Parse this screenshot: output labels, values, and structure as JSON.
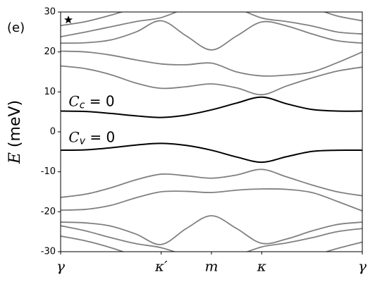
{
  "chart_data": {
    "type": "line",
    "panel_label": "(e)",
    "ylabel": {
      "symbol": "E",
      "unit": "(meV)"
    },
    "annotations": [
      {
        "symbol": "C",
        "sub": "c",
        "rest": " = 0",
        "x": 0.08,
        "y": 7.5
      },
      {
        "symbol": "C",
        "sub": "v",
        "rest": " = 0",
        "x": 0.08,
        "y": -1.5
      }
    ],
    "x": [
      0,
      0.25,
      0.5,
      0.75,
      1,
      1.25,
      1.5,
      1.75,
      2,
      2.25,
      2.5,
      2.75,
      3
    ],
    "xlim": [
      0,
      3
    ],
    "xticks": [
      {
        "value": 0,
        "label": "γ"
      },
      {
        "value": 1,
        "label": "κ′"
      },
      {
        "value": 1.5,
        "label": "m"
      },
      {
        "value": 2,
        "label": "κ"
      },
      {
        "value": 3,
        "label": "γ"
      }
    ],
    "ylim": [
      -30,
      30
    ],
    "yticks": [
      -30,
      -20,
      -10,
      0,
      10,
      20,
      30
    ],
    "series": [
      {
        "color": "#000000",
        "values": [
          5.2,
          5.1,
          4.6,
          4.0,
          3.6,
          4.2,
          5.5,
          7.2,
          8.7,
          7.0,
          5.6,
          5.2,
          5.2
        ]
      },
      {
        "color": "#000000",
        "values": [
          -4.6,
          -4.5,
          -4.0,
          -3.3,
          -2.9,
          -3.4,
          -4.6,
          -6.3,
          -7.6,
          -6.2,
          -4.9,
          -4.6,
          -4.6
        ]
      },
      {
        "color": "#808080",
        "values": [
          16.5,
          15.8,
          14.3,
          12.2,
          10.9,
          11.3,
          12.0,
          11.0,
          9.3,
          11.5,
          13.5,
          15.2,
          16.2
        ]
      },
      {
        "color": "#808080",
        "values": [
          20.2,
          20.0,
          19.2,
          18.0,
          17.0,
          16.8,
          17.2,
          15.0,
          14.0,
          14.2,
          15.0,
          17.3,
          20.0
        ]
      },
      {
        "color": "#808080",
        "values": [
          22.2,
          22.3,
          23.0,
          25.0,
          27.8,
          24.0,
          20.5,
          24.0,
          27.5,
          26.5,
          24.5,
          22.8,
          22.2
        ]
      },
      {
        "color": "#808080",
        "values": [
          23.8,
          25.0,
          26.3,
          27.6,
          28.6,
          31.0,
          33.0,
          31.0,
          28.5,
          27.6,
          26.5,
          25.0,
          24.5
        ]
      },
      {
        "color": "#808080",
        "values": [
          26.6,
          27.6,
          29.2,
          31.0,
          32.0,
          34.0,
          35.0,
          34.0,
          32.5,
          32.0,
          31.0,
          29.0,
          27.8
        ]
      },
      {
        "color": "#808080",
        "values": [
          -16.4,
          -15.6,
          -14.0,
          -12.0,
          -10.6,
          -11.0,
          -11.6,
          -10.8,
          -9.4,
          -11.3,
          -13.3,
          -15.0,
          -16.0
        ]
      },
      {
        "color": "#808080",
        "values": [
          -19.6,
          -19.4,
          -18.4,
          -16.5,
          -15.0,
          -14.9,
          -15.2,
          -14.6,
          -14.3,
          -14.4,
          -15.2,
          -17.4,
          -19.8
        ]
      },
      {
        "color": "#808080",
        "values": [
          -22.6,
          -22.8,
          -23.6,
          -25.6,
          -28.2,
          -24.2,
          -21.0,
          -24.2,
          -27.9,
          -26.8,
          -24.8,
          -23.2,
          -22.6
        ]
      },
      {
        "color": "#808080",
        "values": [
          -23.5,
          -24.8,
          -26.5,
          -28.0,
          -29.0,
          -31.0,
          -33.0,
          -31.0,
          -28.8,
          -27.8,
          -26.5,
          -25.0,
          -24.2
        ]
      },
      {
        "color": "#808080",
        "values": [
          -26.1,
          -27.3,
          -29.0,
          -31.0,
          -32.0,
          -34.0,
          -35.0,
          -34.0,
          -32.5,
          -32.0,
          -31.0,
          -29.2,
          -27.6
        ]
      }
    ]
  }
}
